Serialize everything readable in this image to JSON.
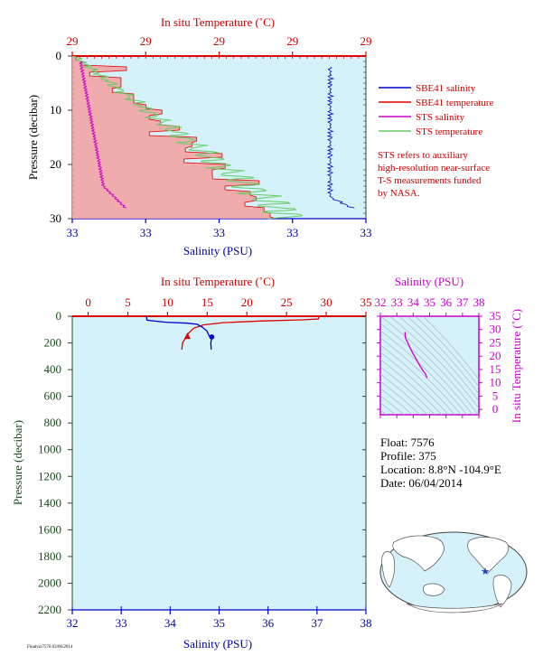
{
  "chart_data": [
    {
      "type": "line",
      "panel": "near-surface",
      "top_axis": {
        "label": "In situ Temperature (˚C)",
        "ticks": [
          "29",
          "29",
          "29",
          "29",
          "29"
        ],
        "color": "#cc0000"
      },
      "bottom_axis": {
        "label": "Salinity (PSU)",
        "ticks": [
          "33",
          "33",
          "33",
          "33",
          "33"
        ],
        "color": "#0000aa"
      },
      "left_axis": {
        "label": "Pressure (decibar)",
        "ticks": [
          "0",
          "10",
          "20",
          "30"
        ],
        "ylim": [
          0,
          30
        ]
      },
      "legend": {
        "placement": "right",
        "entries": [
          {
            "name": "SBE41 salinity",
            "color": "#0000cc"
          },
          {
            "name": "SBE41 temperature",
            "color": "#dd0000"
          },
          {
            "name": "STS salinity",
            "color": "#cc00cc"
          },
          {
            "name": "STS temperature",
            "color": "#66cc66"
          }
        ]
      },
      "note": [
        "STS refers to auxiliary",
        "high-resolution near-surface",
        "T-S measurements funded",
        "by NASA."
      ],
      "colors": {
        "background": "#d5f1f9",
        "sbe_temp_fill": "#f4a0a0",
        "sts_temp": "#66cc66"
      }
    },
    {
      "type": "line",
      "panel": "full-profile",
      "top_axis": {
        "label": "In situ Temperature (˚C)",
        "ticks": [
          "0",
          "5",
          "10",
          "15",
          "20",
          "25",
          "30",
          "35"
        ],
        "xlim": [
          -2,
          35
        ],
        "color": "#cc0000"
      },
      "bottom_axis": {
        "label": "Salinity (PSU)",
        "ticks": [
          "32",
          "33",
          "34",
          "35",
          "36",
          "37",
          "38"
        ],
        "xlim": [
          32,
          38
        ],
        "color": "#0000aa"
      },
      "left_axis": {
        "label": "Pressure (decibar)",
        "ticks": [
          "0",
          "200",
          "400",
          "600",
          "800",
          "1000",
          "1200",
          "1400",
          "1600",
          "1800",
          "2000",
          "2200"
        ],
        "ylim": [
          0,
          2200
        ],
        "color": "#1a4a1a"
      },
      "series": [
        {
          "key": "temperature",
          "color": "#dd0000",
          "points": [
            [
              29.1,
              0
            ],
            [
              29.0,
              20
            ],
            [
              27.0,
              27
            ],
            [
              22.0,
              35
            ],
            [
              17.0,
              48
            ],
            [
              14.5,
              65
            ],
            [
              13.3,
              90
            ],
            [
              12.6,
              130
            ],
            [
              12.3,
              160
            ],
            [
              11.9,
              200
            ],
            [
              11.8,
              250
            ]
          ]
        },
        {
          "key": "salinity",
          "color": "#0000cc",
          "points": [
            [
              33.52,
              0
            ],
            [
              33.52,
              15
            ],
            [
              33.53,
              30
            ],
            [
              33.9,
              45
            ],
            [
              34.35,
              52
            ],
            [
              34.55,
              60
            ],
            [
              34.65,
              80
            ],
            [
              34.75,
              110
            ],
            [
              34.8,
              150
            ],
            [
              34.85,
              160
            ],
            [
              34.83,
              200
            ],
            [
              34.84,
              250
            ]
          ]
        }
      ],
      "markers": [
        {
          "series": "temperature",
          "x": 12.5,
          "y": 150
        },
        {
          "series": "salinity",
          "x": 34.85,
          "y": 155
        }
      ],
      "colors": {
        "background": "#d5f1f9"
      }
    },
    {
      "type": "line",
      "panel": "T-S diagram",
      "top_axis": {
        "label": "Salinity (PSU)",
        "ticks": [
          "32",
          "33",
          "34",
          "35",
          "36",
          "37",
          "38"
        ],
        "xlim": [
          32,
          38
        ],
        "color": "#cc00cc"
      },
      "right_axis": {
        "label": "In situ Temperature (˚C)",
        "ticks": [
          "0",
          "5",
          "10",
          "15",
          "20",
          "25",
          "30",
          "35"
        ],
        "ylim": [
          -2,
          35
        ],
        "color": "#cc00cc"
      },
      "series": [
        {
          "key": "ts",
          "color": "#cc00cc",
          "points": [
            [
              33.5,
              29.1
            ],
            [
              33.52,
              27
            ],
            [
              33.9,
              22
            ],
            [
              34.35,
              17
            ],
            [
              34.6,
              14.5
            ],
            [
              34.75,
              13.3
            ],
            [
              34.82,
              12.3
            ],
            [
              34.84,
              11.8
            ]
          ]
        }
      ],
      "colors": {
        "background": "#d5f1f9",
        "isopycnal": "#a0b4c0"
      }
    }
  ],
  "info": {
    "float": "Float:  7576",
    "profile": "Profile:  375",
    "location": "Location:  8.8°N  -104.9°E",
    "date": "Date:  06/04/2014"
  },
  "map": {
    "marker": "★",
    "colors": {
      "ocean": "#d5f1f9",
      "land": "#ffffff",
      "marker": "#2040c0"
    }
  },
  "footer": "Floatviz7576  03/06/2014"
}
